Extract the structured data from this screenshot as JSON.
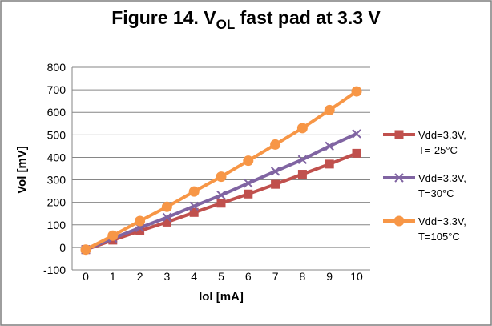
{
  "chart_data": {
    "type": "line",
    "title": {
      "prefix": "Figure 14. V",
      "subscript": "OL",
      "suffix": " fast pad at 3.3 V"
    },
    "xlabel": "Iol [mA]",
    "ylabel": "Vol [mV]",
    "x": [
      0,
      1,
      2,
      3,
      4,
      5,
      6,
      7,
      8,
      9,
      10
    ],
    "xlim": [
      0,
      10
    ],
    "ylim": [
      -100,
      800
    ],
    "yticks": [
      -100,
      0,
      100,
      200,
      300,
      400,
      500,
      600,
      700,
      800
    ],
    "grid": true,
    "legend_position": "right",
    "series": [
      {
        "name_lines": [
          "Vdd=3.3V,",
          "T=-25°C"
        ],
        "color": "#c0504d",
        "marker": "square",
        "values": [
          -10,
          32,
          73,
          112,
          155,
          196,
          237,
          280,
          325,
          370,
          418
        ]
      },
      {
        "name_lines": [
          "Vdd=3.3V,",
          "T=30°C"
        ],
        "color": "#8064a2",
        "marker": "x",
        "values": [
          -10,
          40,
          87,
          133,
          183,
          232,
          285,
          338,
          390,
          450,
          505
        ]
      },
      {
        "name_lines": [
          "Vdd=3.3V,",
          "T=105°C"
        ],
        "color": "#f79646",
        "marker": "circle",
        "values": [
          -10,
          52,
          117,
          180,
          248,
          314,
          385,
          457,
          530,
          610,
          693
        ]
      }
    ]
  }
}
